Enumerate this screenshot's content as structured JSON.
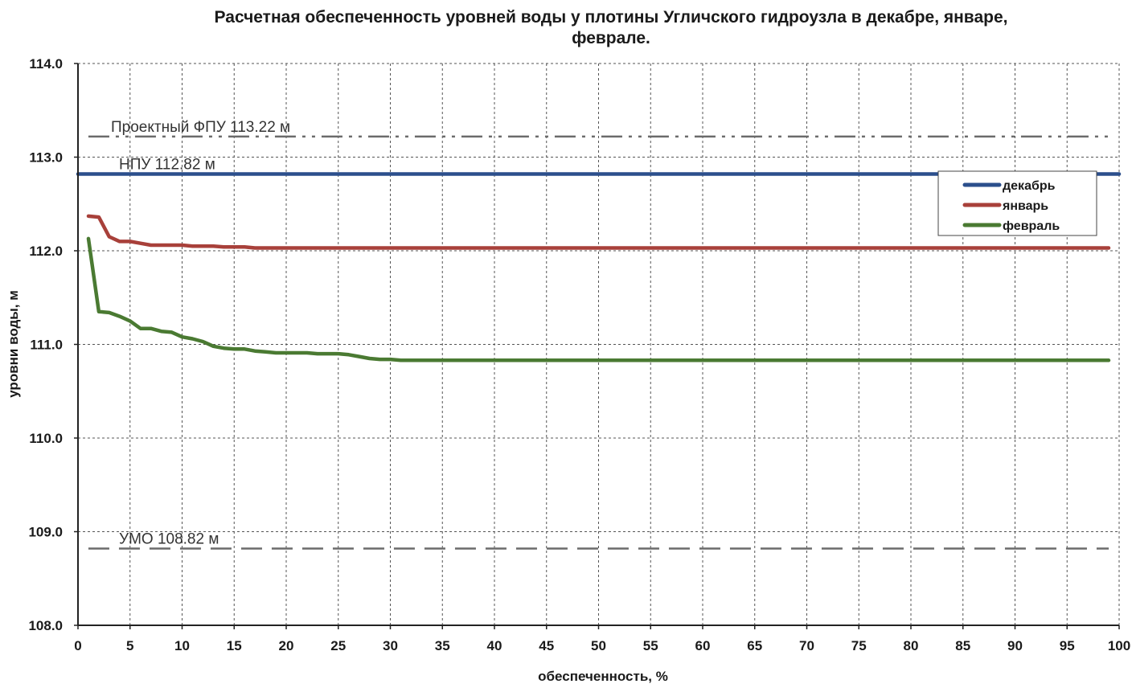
{
  "chart_data": {
    "type": "line",
    "title_lines": [
      "Расчетная обеспеченность уровней воды у плотины Угличского гидроузла в декабре, январе,",
      "феврале."
    ],
    "xlabel": "обеспеченность,  %",
    "ylabel": "уровни воды, м",
    "xlim": [
      0,
      100
    ],
    "ylim": [
      108.0,
      114.0
    ],
    "x_ticks": [
      0,
      5,
      10,
      15,
      20,
      25,
      30,
      35,
      40,
      45,
      50,
      55,
      60,
      65,
      70,
      75,
      80,
      85,
      90,
      95,
      100
    ],
    "y_ticks": [
      "108.0",
      "109.0",
      "110.0",
      "111.0",
      "112.0",
      "113.0",
      "114.0"
    ],
    "grid": true,
    "legend_position": "upper-right",
    "reference_lines": [
      {
        "label": "Проектный ФПУ 113.22 м",
        "value": 113.22,
        "style": "dash-dot-dot",
        "color": "#6b6b6b"
      },
      {
        "label": "НПУ 112.82 м",
        "value": 112.82,
        "style": "solid",
        "color": "#2b4f8c"
      },
      {
        "label": "УМО 108.82 м",
        "value": 108.82,
        "style": "dashed",
        "color": "#6b6b6b"
      }
    ],
    "series": [
      {
        "name": "декабрь",
        "color": "#2b4f8c",
        "x": [
          0,
          100
        ],
        "y": [
          112.82,
          112.82
        ]
      },
      {
        "name": "январь",
        "color": "#a8403a",
        "x": [
          1,
          2,
          3,
          4,
          5,
          6,
          7,
          8,
          9,
          10,
          11,
          12,
          13,
          14,
          15,
          16,
          17,
          18,
          20,
          25,
          30,
          40,
          50,
          60,
          70,
          80,
          90,
          99
        ],
        "y": [
          112.37,
          112.36,
          112.15,
          112.1,
          112.1,
          112.08,
          112.06,
          112.06,
          112.06,
          112.06,
          112.05,
          112.05,
          112.05,
          112.04,
          112.04,
          112.04,
          112.03,
          112.03,
          112.03,
          112.03,
          112.03,
          112.03,
          112.03,
          112.03,
          112.03,
          112.03,
          112.03,
          112.03
        ]
      },
      {
        "name": "февраль",
        "color": "#4a7a32",
        "x": [
          1,
          2,
          3,
          4,
          5,
          6,
          7,
          8,
          9,
          10,
          11,
          12,
          13,
          14,
          15,
          16,
          17,
          18,
          19,
          20,
          21,
          22,
          23,
          24,
          25,
          26,
          27,
          28,
          29,
          30,
          31,
          35,
          40,
          50,
          60,
          70,
          80,
          90,
          99
        ],
        "y": [
          112.13,
          111.35,
          111.34,
          111.3,
          111.25,
          111.17,
          111.17,
          111.14,
          111.13,
          111.08,
          111.06,
          111.03,
          110.98,
          110.96,
          110.95,
          110.95,
          110.93,
          110.92,
          110.91,
          110.91,
          110.91,
          110.91,
          110.9,
          110.9,
          110.9,
          110.89,
          110.87,
          110.85,
          110.84,
          110.84,
          110.83,
          110.83,
          110.83,
          110.83,
          110.83,
          110.83,
          110.83,
          110.83,
          110.83
        ]
      }
    ]
  }
}
